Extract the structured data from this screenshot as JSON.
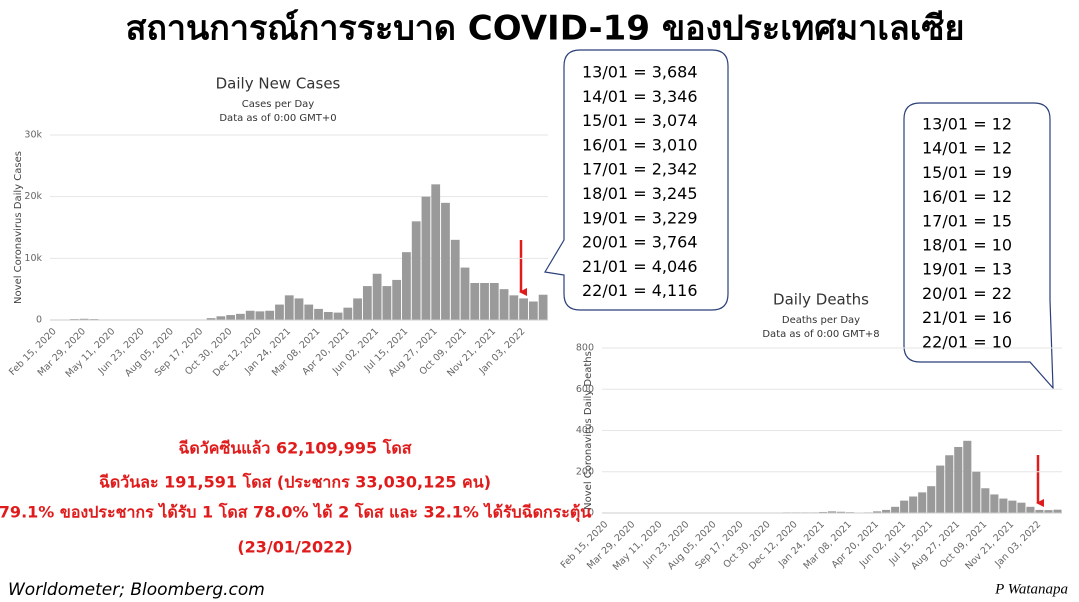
{
  "title": "สถานการณ์การระบาด COVID-19 ของประเทศมาเลเซีย",
  "chart_data": [
    {
      "type": "bar",
      "title": "Daily New Cases",
      "subtitle": [
        "Cases per Day",
        "Data as of 0:00 GMT+0"
      ],
      "y_label": "Novel Coronavirus Daily Cases",
      "color": "#9a9a9a",
      "categories": [
        "Feb 15, 2020",
        null,
        null,
        "Mar 29, 2020",
        null,
        null,
        "May 11, 2020",
        null,
        null,
        "Jun 23, 2020",
        null,
        null,
        "Aug 05, 2020",
        null,
        null,
        "Sep 17, 2020",
        null,
        null,
        "Oct 30, 2020",
        null,
        null,
        "Dec 12, 2020",
        null,
        null,
        "Jan 24, 2021",
        null,
        null,
        "Mar 08, 2021",
        null,
        null,
        "Apr 20, 2021",
        null,
        null,
        "Jun 02, 2021",
        null,
        null,
        "Jul 15, 2021",
        null,
        null,
        "Aug 27, 2021",
        null,
        null,
        "Oct 09, 2021",
        null,
        null,
        "Nov 21, 2021",
        null,
        null,
        "Jan 03, 2022",
        null,
        null
      ],
      "values": [
        10,
        20,
        150,
        200,
        150,
        60,
        50,
        50,
        20,
        10,
        10,
        10,
        15,
        10,
        20,
        60,
        300,
        600,
        800,
        1000,
        1500,
        1400,
        1500,
        2500,
        4000,
        3500,
        2500,
        1800,
        1300,
        1200,
        2000,
        3500,
        5500,
        7500,
        5500,
        6500,
        11000,
        16000,
        20000,
        22000,
        19000,
        13000,
        8500,
        6000,
        6000,
        6000,
        5000,
        4000,
        3500,
        3000,
        4100
      ],
      "ylim": [
        0,
        30000
      ],
      "yticks": [
        0,
        {
          "value": 10000,
          "label": "10k"
        },
        {
          "value": 20000,
          "label": "20k"
        },
        {
          "value": 30000,
          "label": "30k"
        }
      ]
    },
    {
      "type": "bar",
      "title": "Daily Deaths",
      "subtitle": [
        "Deaths per Day",
        "Data as of 0:00 GMT+8"
      ],
      "y_label": "Novel Coronavirus Daily Deaths",
      "color": "#9a9a9a",
      "categories": [
        "Feb 15, 2020",
        null,
        null,
        "Mar 29, 2020",
        null,
        null,
        "May 11, 2020",
        null,
        null,
        "Jun 23, 2020",
        null,
        null,
        "Aug 05, 2020",
        null,
        null,
        "Sep 17, 2020",
        null,
        null,
        "Oct 30, 2020",
        null,
        null,
        "Dec 12, 2020",
        null,
        null,
        "Jan 24, 2021",
        null,
        null,
        "Mar 08, 2021",
        null,
        null,
        "Apr 20, 2021",
        null,
        null,
        "Jun 02, 2021",
        null,
        null,
        "Jul 15, 2021",
        null,
        null,
        "Aug 27, 2021",
        null,
        null,
        "Oct 09, 2021",
        null,
        null,
        "Nov 21, 2021",
        null,
        null,
        "Jan 03, 2022",
        null,
        null
      ],
      "values": [
        0,
        0,
        1,
        1,
        1,
        0,
        0,
        0,
        0,
        0,
        0,
        0,
        0,
        0,
        0,
        0,
        1,
        2,
        2,
        2,
        3,
        3,
        3,
        3,
        5,
        8,
        6,
        4,
        2,
        3,
        8,
        15,
        30,
        60,
        80,
        100,
        130,
        230,
        280,
        320,
        350,
        200,
        120,
        90,
        70,
        60,
        50,
        30,
        15,
        14,
        16
      ],
      "ylim": [
        0,
        800
      ],
      "yticks": [
        0,
        200,
        400,
        600,
        800
      ]
    }
  ],
  "callouts": {
    "cases": [
      "13/01 =  3,684",
      "14/01 =  3,346",
      "15/01 =  3,074",
      "16/01 =  3,010",
      "17/01 =  2,342",
      "18/01 =  3,245",
      "19/01 =  3,229",
      "20/01 =  3,764",
      "21/01 =  4,046",
      "22/01 =  4,116"
    ],
    "deaths": [
      "13/01 =  12",
      "14/01 =  12",
      "15/01 =  19",
      "16/01 =  12",
      "17/01 =  15",
      "18/01 =  10",
      "19/01 =  13",
      "20/01 =  22",
      "21/01 =  16",
      "22/01 =  10"
    ]
  },
  "summary": [
    "ฉีดวัคซีนแล้ว 62,109,995 โดส",
    "ฉีดวันละ 191,591 โดส (ประชากร 33,030,125 คน)",
    "79.1% ของประชากร ได้รับ 1 โดส 78.0% ได้ 2 โดส และ 32.1% ได้รับฉีดกระตุ้น",
    "(23/01/2022)"
  ],
  "source": "Worldometer;  Bloomberg.com",
  "signature": "P Watanapa"
}
